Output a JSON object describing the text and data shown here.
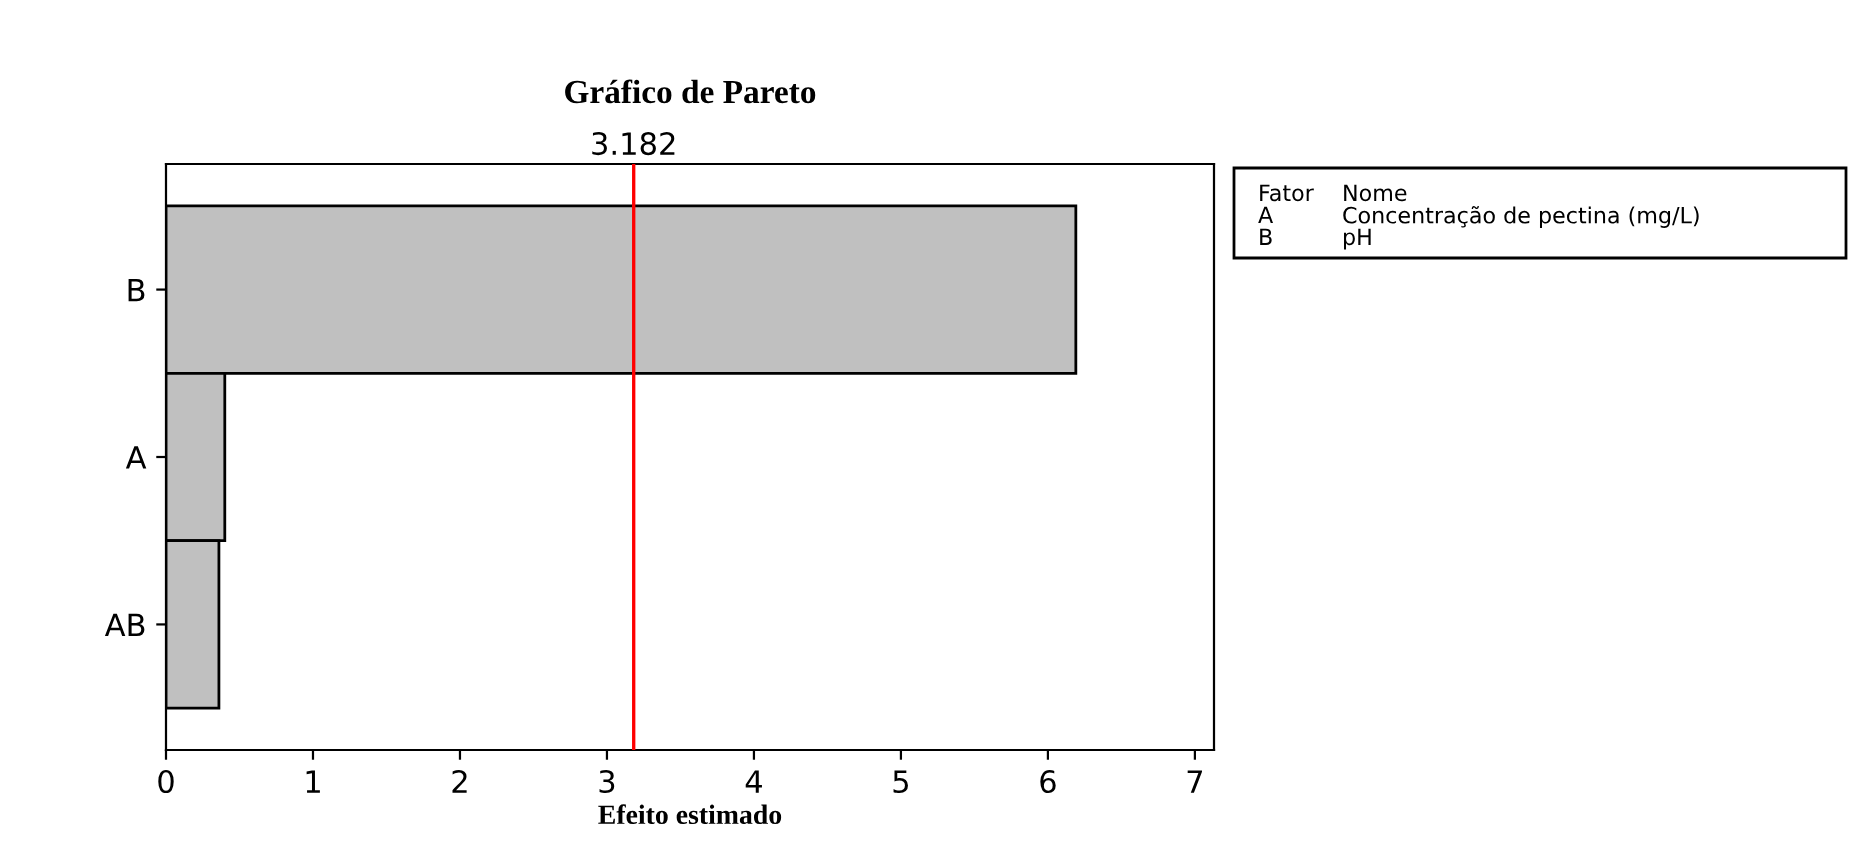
{
  "chart_data": {
    "type": "bar",
    "orientation": "horizontal",
    "title": "Gráfico de Pareto",
    "xlabel": "Efeito estimado",
    "categories": [
      "B",
      "A",
      "AB"
    ],
    "series": [
      {
        "color": "#c0c0c0",
        "values": [
          6.19,
          0.4,
          0.36
        ]
      }
    ],
    "xlim": [
      0,
      7.13
    ],
    "xticks": [
      0,
      1,
      2,
      3,
      4,
      5,
      6,
      7
    ],
    "ref_lines": [
      {
        "axis": "x",
        "value": 3.182,
        "label": "3.182",
        "color": "#ff0000"
      }
    ],
    "annotations": [
      "Fator",
      "Nome",
      "A",
      "Concentração de pectina (mg/L)",
      "B",
      "pH"
    ],
    "grid": false,
    "legend": false
  }
}
